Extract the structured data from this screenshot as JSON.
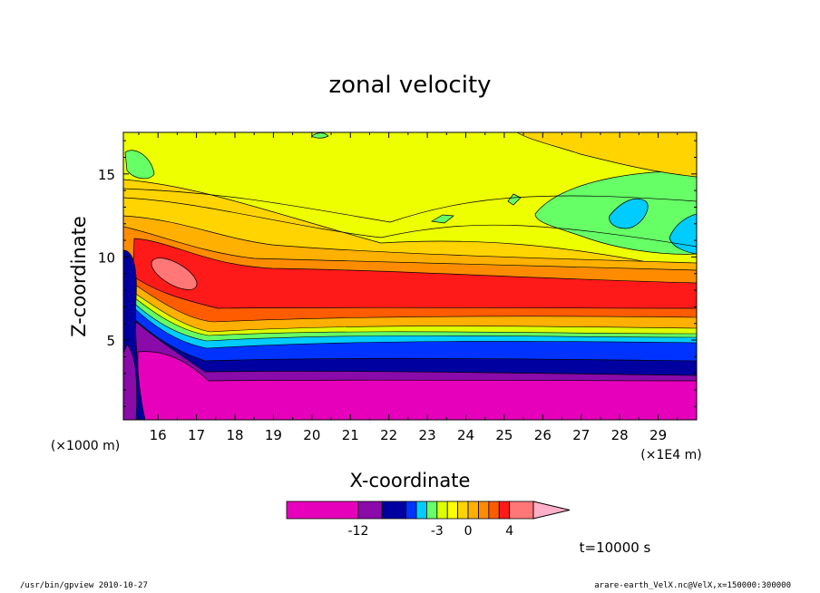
{
  "chart_data": {
    "type": "heatmap",
    "title": "zonal velocity",
    "xlabel": "X-coordinate",
    "ylabel": "Z-coordinate",
    "x_unit_label": "(×1E4 m)",
    "y_unit_label": "(×1000 m)",
    "x_range": [
      15.1,
      30.0
    ],
    "y_range": [
      0.2,
      17.5
    ],
    "x_ticks": [
      "16",
      "17",
      "18",
      "19",
      "20",
      "21",
      "22",
      "23",
      "24",
      "25",
      "26",
      "27",
      "28",
      "29"
    ],
    "y_ticks": [
      "5",
      "10",
      "15"
    ],
    "colorbar": {
      "levels": [
        -21,
        -12,
        -9,
        -6,
        -5,
        -4,
        -3,
        -2,
        -1,
        0,
        1,
        2,
        3,
        4,
        7,
        10
      ],
      "colors": [
        "#e600bb",
        "#8a0aaa",
        "#0000a0",
        "#0033ff",
        "#00ccff",
        "#66ff66",
        "#ddff00",
        "#ffff00",
        "#ffd400",
        "#ffb000",
        "#ff8c00",
        "#ff5c00",
        "#ff1a1a",
        "#ff7777",
        "#ffb0c8"
      ],
      "labels": [
        "-12",
        "-3",
        "0",
        "4"
      ]
    },
    "time_label": "t=10000 s",
    "grid": false
  },
  "footer": {
    "left": "/usr/bin/gpview   2010-10-27",
    "right": "arare-earth_VelX.nc@VelX,x=150000:300000"
  }
}
